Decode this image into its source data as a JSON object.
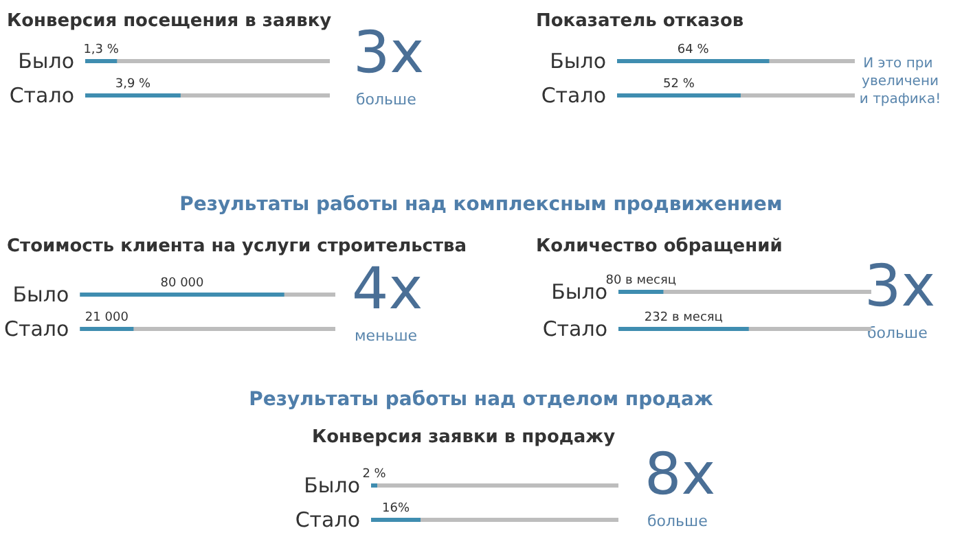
{
  "chart_data": [
    {
      "type": "bar",
      "orientation": "horizontal",
      "title": "Конверсия посещения в заявку",
      "categories": [
        "Было",
        "Стало"
      ],
      "values": [
        1.3,
        3.9
      ],
      "value_labels": [
        "1,3 %",
        "3,9 %"
      ],
      "color": "#3f8db0",
      "xlim": [
        0,
        10
      ],
      "tick_labels": "y",
      "annotations": [
        "3x",
        "больше"
      ]
    },
    {
      "type": "bar",
      "orientation": "horizontal",
      "title": "Показатель отказов",
      "categories": [
        "Было",
        "Стало"
      ],
      "values": [
        64,
        52
      ],
      "value_labels": [
        "64 %",
        "52 %"
      ],
      "color": "#3f8db0",
      "xlim": [
        0,
        100
      ],
      "tick_labels": "y",
      "annotations": [
        "И это при увеличении трафика!"
      ]
    },
    {
      "type": "bar",
      "orientation": "horizontal",
      "title": "Стоимость клиента на услуги строительства",
      "categories": [
        "Было",
        "Стало"
      ],
      "values": [
        80000,
        21000
      ],
      "value_labels": [
        "80 000",
        "21 000"
      ],
      "color": "#3f8db0",
      "xlim": [
        0,
        100000
      ],
      "tick_labels": "y",
      "annotations": [
        "Результаты работы над комплексным продвижением",
        "4x",
        "меньше"
      ]
    },
    {
      "type": "bar",
      "orientation": "horizontal",
      "title": "Количество обращений",
      "categories": [
        "Было",
        "Стало"
      ],
      "values": [
        80,
        232
      ],
      "value_labels": [
        "80 в месяц",
        "232 в месяц"
      ],
      "color": "#3f8db0",
      "xlim": [
        0,
        450
      ],
      "tick_labels": "y",
      "annotations": [
        "3x",
        "больше"
      ]
    },
    {
      "type": "bar",
      "orientation": "horizontal",
      "title": "Конверсия заявки в продажу",
      "categories": [
        "Было",
        "Стало"
      ],
      "values": [
        2,
        16
      ],
      "value_labels": [
        "2 %",
        "16%"
      ],
      "color": "#3f8db0",
      "xlim": [
        0,
        80
      ],
      "tick_labels": "y",
      "annotations": [
        "Результаты работы над отделом продаж",
        "8x",
        "больше"
      ]
    }
  ]
}
